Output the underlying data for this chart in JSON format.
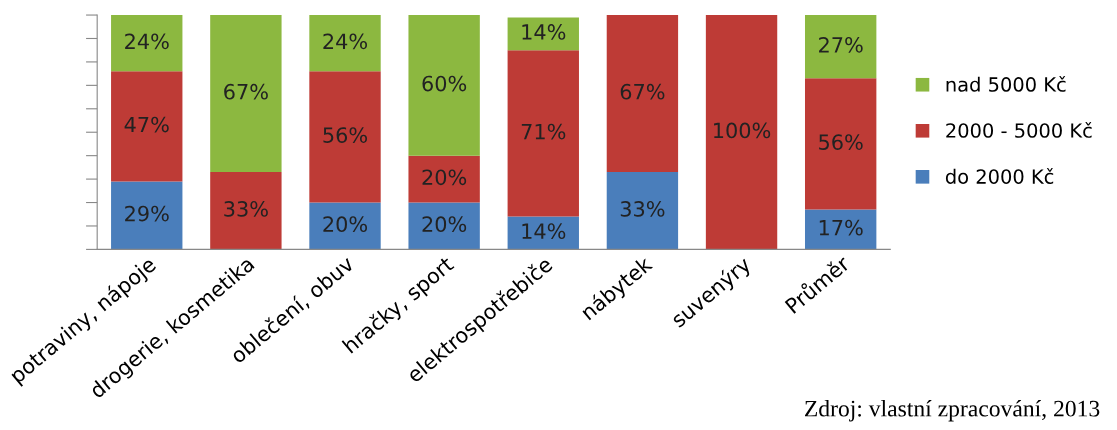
{
  "chart_data": {
    "type": "bar",
    "stacked": true,
    "categories": [
      "potraviny, nápoje",
      "drogerie, kosmetika",
      "oblečení, obuv",
      "hračky, sport",
      "elektrospotřebiče",
      "nábytek",
      "suvenýry",
      "Průměr"
    ],
    "series": [
      {
        "name": "do 2000 Kč",
        "color": "#4a7ebb",
        "values": [
          29,
          0,
          20,
          20,
          14,
          33,
          0,
          17
        ],
        "value_labels": [
          "29%",
          null,
          "20%",
          "20%",
          "14%",
          "33%",
          null,
          "17%"
        ]
      },
      {
        "name": "2000 - 5000 Kč",
        "color": "#be3b36",
        "values": [
          47,
          33,
          56,
          20,
          71,
          67,
          100,
          56
        ],
        "value_labels": [
          "47%",
          "33%",
          "56%",
          "20%",
          "71%",
          "67%",
          "100%",
          "56%"
        ]
      },
      {
        "name": "nad 5000 Kč",
        "color": "#8cb840",
        "values": [
          24,
          67,
          24,
          60,
          14,
          0,
          0,
          27
        ],
        "value_labels": [
          "24%",
          "67%",
          "24%",
          "60%",
          "14%",
          null,
          null,
          "27%"
        ]
      }
    ],
    "ylim": [
      0,
      100
    ],
    "yticks": [
      {
        "value": 0,
        "label": null
      },
      {
        "value": 10,
        "label": null
      },
      {
        "value": 20,
        "label": null
      },
      {
        "value": 30,
        "label": null
      },
      {
        "value": 40,
        "label": null
      },
      {
        "value": 50,
        "label": null
      },
      {
        "value": 60,
        "label": null
      },
      {
        "value": 70,
        "label": null
      },
      {
        "value": 80,
        "label": null
      },
      {
        "value": 90,
        "label": null
      },
      {
        "value": 100,
        "label": null
      }
    ],
    "tick_labels": "x",
    "legend": "right",
    "annotations": [
      "Zdroj: vlastní zpracování, 2013"
    ]
  }
}
